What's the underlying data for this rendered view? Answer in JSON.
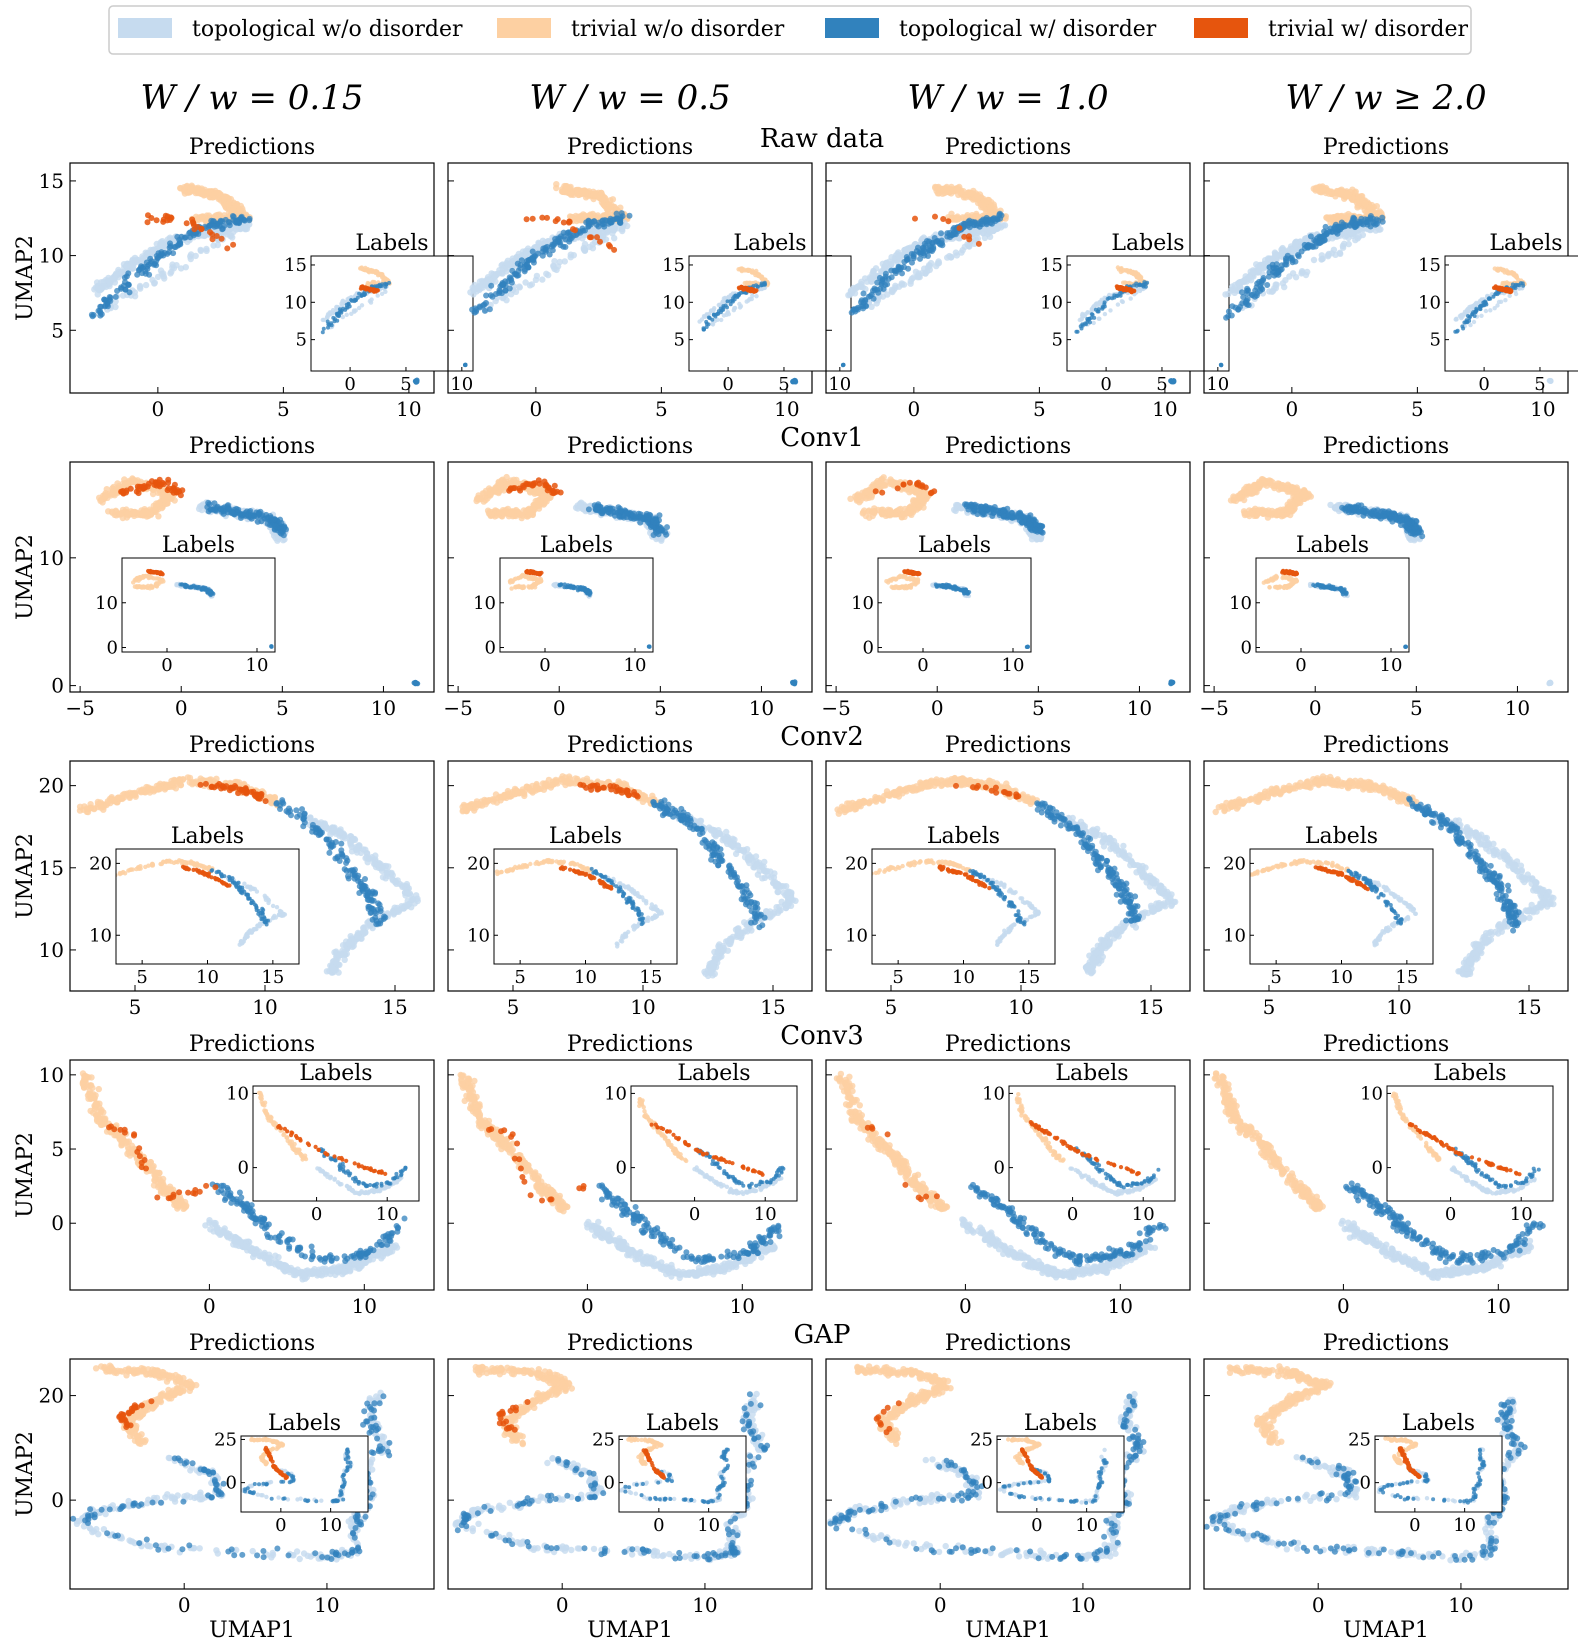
{
  "legend": [
    {
      "label": "topological w/o disorder",
      "color": "#c6dbef"
    },
    {
      "label": "trivial w/o disorder",
      "color": "#fdd0a2"
    },
    {
      "label": "topological w/ disorder",
      "color": "#3182bd"
    },
    {
      "label": "trivial w/ disorder",
      "color": "#e6550d"
    }
  ],
  "columns": [
    "W / w = 0.15",
    "W / w = 0.5",
    "W / w = 1.0",
    "W / w ≥ 2.0"
  ],
  "panel_title": "Predictions",
  "inset_title": "Labels",
  "xlabel": "UMAP1",
  "ylabel": "UMAP2",
  "chart_data": [
    {
      "type": "scatter",
      "title": "Raw data",
      "xlim": [
        -3.5,
        11
      ],
      "ylim": [
        0.8,
        16.2
      ],
      "xticks": [
        0,
        5,
        10
      ],
      "yticks": [
        5,
        10,
        15
      ],
      "inset": {
        "xlim": [
          -3.5,
          11
        ],
        "ylim": [
          0.8,
          16.2
        ],
        "xticks": [
          0,
          5,
          10
        ],
        "yticks": [
          5,
          10,
          15
        ]
      },
      "clusters": {
        "trivial_clean": [
          [
            1.0,
            14.5
          ],
          [
            2.5,
            14.0
          ],
          [
            3.5,
            12.5
          ],
          [
            1.5,
            12.5
          ]
        ],
        "topological_clean": [
          [
            -2.5,
            7.5
          ],
          [
            -1.0,
            9.5
          ],
          [
            0.5,
            11.0
          ],
          [
            2.0,
            11.5
          ],
          [
            3.5,
            12.0
          ],
          [
            -2.0,
            6.5
          ]
        ],
        "far_cluster": [
          [
            10.3,
            1.6
          ]
        ]
      },
      "series": [
        {
          "label": "topological w/ disorder",
          "topo_path": [
            [
              -2.5,
              6.0
            ],
            [
              -1.0,
              8.5
            ],
            [
              0.5,
              10.5
            ],
            [
              2.0,
              12.0
            ],
            [
              3.5,
              12.5
            ]
          ],
          "trivial_path": [
            [
              -0.5,
              12.5
            ],
            [
              1.0,
              12.5
            ],
            [
              2.0,
              11.5
            ],
            [
              3.0,
              10.5
            ]
          ],
          "inset_trivial": [
            [
              1.0,
              12.0
            ],
            [
              2.5,
              11.5
            ]
          ],
          "trivial_fraction": 0.2
        }
      ]
    },
    {
      "type": "scatter",
      "title": "Conv1",
      "xlim": [
        -5.5,
        12.5
      ],
      "ylim": [
        -0.5,
        17.5
      ],
      "xticks": [
        -5,
        0,
        5,
        10
      ],
      "yticks": [
        0,
        10
      ],
      "inset": {
        "xlim": [
          -5,
          12
        ],
        "ylim": [
          -1,
          20
        ],
        "xticks": [
          0,
          10
        ],
        "yticks": [
          0,
          10
        ]
      },
      "clusters": {
        "trivial_clean": [
          [
            -4.0,
            14.5
          ],
          [
            -2.5,
            16.0
          ],
          [
            -0.5,
            15.0
          ],
          [
            -1.5,
            13.5
          ],
          [
            -3.5,
            13.5
          ]
        ],
        "topological_clean": [
          [
            1.0,
            14.0
          ],
          [
            3.0,
            13.5
          ],
          [
            4.5,
            13.0
          ],
          [
            5.0,
            11.5
          ]
        ],
        "far_cluster": [
          [
            11.6,
            0.2
          ]
        ]
      },
      "series": [
        {
          "label": "topological w/ disorder",
          "topo_path": [
            [
              1.5,
              14.0
            ],
            [
              3.0,
              13.5
            ],
            [
              4.5,
              13.0
            ],
            [
              5.0,
              12.0
            ]
          ],
          "trivial_path": [
            [
              -3.0,
              15.0
            ],
            [
              -1.0,
              16.0
            ],
            [
              0.0,
              15.0
            ]
          ],
          "inset_trivial": [
            [
              -2.0,
              17.0
            ],
            [
              -0.5,
              16.5
            ]
          ],
          "trivial_fraction": 0.35
        }
      ]
    },
    {
      "type": "scatter",
      "title": "Conv2",
      "xlim": [
        2.5,
        16.5
      ],
      "ylim": [
        7.5,
        21.5
      ],
      "xticks": [
        5,
        10,
        15
      ],
      "yticks": [
        10,
        15,
        20
      ],
      "inset": {
        "xlim": [
          3,
          17
        ],
        "ylim": [
          6,
          22
        ],
        "xticks": [
          5,
          10,
          15
        ],
        "yticks": [
          10,
          20
        ]
      },
      "clusters": {
        "trivial_clean": [
          [
            3.0,
            18.5
          ],
          [
            5.0,
            19.5
          ],
          [
            7.0,
            20.3
          ],
          [
            9.0,
            20.0
          ],
          [
            10.5,
            19.0
          ]
        ],
        "topological_clean": [
          [
            11.5,
            18.0
          ],
          [
            13.0,
            17.0
          ],
          [
            14.5,
            15.0
          ],
          [
            15.8,
            13.0
          ],
          [
            14.0,
            11.5
          ],
          [
            13.0,
            10.0
          ],
          [
            12.5,
            8.5
          ]
        ],
        "far_cluster": []
      },
      "series": [
        {
          "label": "topological w/ disorder",
          "topo_path": [
            [
              10.5,
              19.0
            ],
            [
              12.0,
              17.5
            ],
            [
              13.0,
              15.5
            ],
            [
              14.0,
              13.5
            ],
            [
              14.5,
              11.5
            ]
          ],
          "trivial_path": [
            [
              7.5,
              20.0
            ],
            [
              9.0,
              19.8
            ],
            [
              10.0,
              19.2
            ]
          ],
          "inset_trivial": [
            [
              8.0,
              19.5
            ],
            [
              10.0,
              18.5
            ],
            [
              12.0,
              16.5
            ]
          ],
          "trivial_fraction": 0.35
        }
      ]
    },
    {
      "type": "scatter",
      "title": "Conv3",
      "xlim": [
        -9,
        14.5
      ],
      "ylim": [
        -4.5,
        11
      ],
      "xticks": [
        0,
        10
      ],
      "yticks": [
        0,
        5,
        10
      ],
      "inset": {
        "xlim": [
          -9,
          14.5
        ],
        "ylim": [
          -4.5,
          11
        ],
        "xticks": [
          0,
          10
        ],
        "yticks": [
          0,
          10
        ]
      },
      "clusters": {
        "trivial_clean": [
          [
            -8.0,
            10.0
          ],
          [
            -7.0,
            7.0
          ],
          [
            -5.0,
            5.0
          ],
          [
            -3.0,
            2.5
          ],
          [
            -1.5,
            1.0
          ]
        ],
        "topological_clean": [
          [
            0.0,
            0.0
          ],
          [
            3.0,
            -2.0
          ],
          [
            6.0,
            -3.5
          ],
          [
            9.0,
            -3.0
          ],
          [
            12.0,
            -1.5
          ]
        ],
        "far_cluster": []
      },
      "series": [
        {
          "label": "topological w/ disorder",
          "topo_path": [
            [
              0.5,
              2.5
            ],
            [
              2.5,
              1.0
            ],
            [
              4.0,
              -0.5
            ],
            [
              7.0,
              -2.5
            ],
            [
              10.5,
              -2.0
            ],
            [
              12.5,
              0.0
            ]
          ],
          "trivial_path": [
            [
              -6.5,
              6.5
            ],
            [
              -5.0,
              6.0
            ],
            [
              -3.5,
              1.5
            ],
            [
              0.5,
              2.5
            ]
          ],
          "inset_trivial": [
            [
              -6.0,
              6.0
            ],
            [
              1.0,
              2.0
            ],
            [
              10.0,
              -1.0
            ]
          ],
          "trivial_fraction": 0.2
        }
      ]
    },
    {
      "type": "scatter",
      "title": "GAP",
      "xlim": [
        -8,
        17.5
      ],
      "ylim": [
        -17,
        27
      ],
      "xticks": [
        0,
        10
      ],
      "yticks": [
        0,
        20
      ],
      "inset": {
        "xlim": [
          -8,
          17.5
        ],
        "ylim": [
          -17,
          27
        ],
        "xticks": [
          0,
          10
        ],
        "yticks": [
          0,
          25
        ]
      },
      "clusters": {
        "trivial_clean": [
          [
            -6.0,
            25.0
          ],
          [
            -2.0,
            24.5
          ],
          [
            0.5,
            22.0
          ],
          [
            -2.0,
            19.0
          ],
          [
            -4.0,
            15.0
          ],
          [
            -3.0,
            11.0
          ]
        ],
        "topological_clean": [
          [
            -1.0,
            8.0
          ],
          [
            2.0,
            5.0
          ],
          [
            2.5,
            1.0
          ],
          [
            -2.0,
            0.0
          ],
          [
            -6.0,
            -2.0
          ],
          [
            -7.5,
            -4.5
          ],
          [
            -2.0,
            -9.0
          ],
          [
            5.0,
            -10.0
          ],
          [
            10.0,
            -11.0
          ],
          [
            12.0,
            -10.0
          ],
          [
            12.0,
            -4.0
          ],
          [
            13.0,
            0.0
          ],
          [
            12.5,
            5.0
          ],
          [
            14.0,
            10.0
          ],
          [
            13.0,
            15.0
          ],
          [
            13.5,
            20.0
          ]
        ],
        "far_cluster": []
      },
      "series": [
        {
          "label": "topological w/ disorder",
          "topo_path": [
            [
              -1.0,
              8.0
            ],
            [
              2.0,
              5.0
            ],
            [
              2.5,
              1.0
            ],
            [
              -2.0,
              0.0
            ],
            [
              -6.0,
              -2.0
            ],
            [
              -7.5,
              -4.5
            ],
            [
              -2.0,
              -9.0
            ],
            [
              5.0,
              -10.0
            ],
            [
              10.0,
              -11.0
            ],
            [
              12.0,
              -10.0
            ],
            [
              12.0,
              -4.0
            ],
            [
              13.0,
              0.0
            ],
            [
              12.5,
              5.0
            ],
            [
              14.0,
              10.0
            ],
            [
              13.0,
              15.0
            ],
            [
              13.5,
              20.0
            ]
          ],
          "trivial_path": [
            [
              -3.5,
              13.0
            ],
            [
              -4.5,
              16.0
            ],
            [
              -2.5,
              19.0
            ]
          ],
          "inset_trivial": [
            [
              -3.0,
              20.0
            ],
            [
              -1.0,
              8.0
            ],
            [
              1.0,
              3.0
            ]
          ],
          "trivial_fraction": 0.2
        }
      ]
    }
  ]
}
